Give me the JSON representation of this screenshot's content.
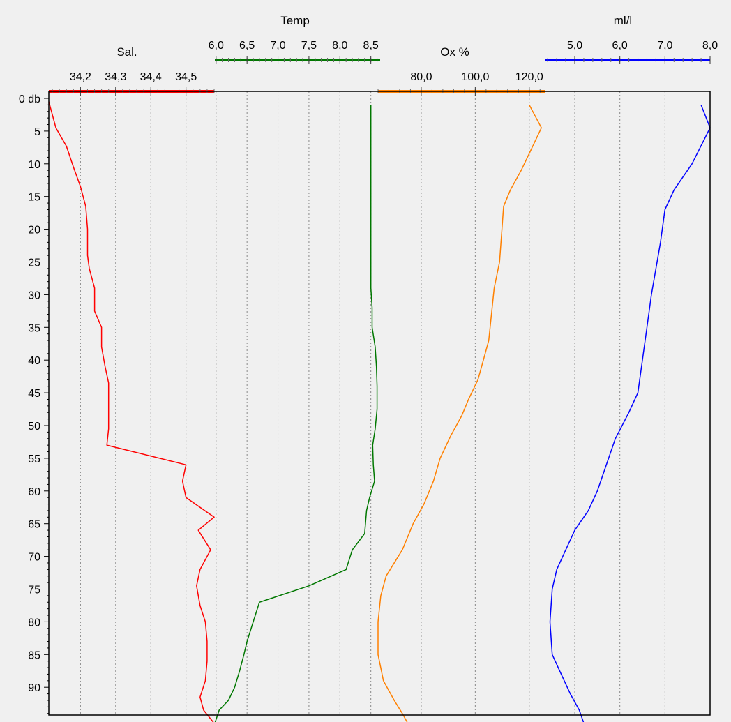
{
  "chart_data": {
    "type": "line",
    "orientation": "vertical-profile",
    "depth_axis": {
      "unit_label": "db",
      "range": [
        0,
        95
      ],
      "tick_labels": [
        "0 db",
        "5",
        "10",
        "15",
        "20",
        "25",
        "30",
        "35",
        "40",
        "45",
        "50",
        "55",
        "60",
        "65",
        "70",
        "75",
        "80",
        "85",
        "90"
      ],
      "tick_values": [
        0,
        5,
        10,
        15,
        20,
        25,
        30,
        35,
        40,
        45,
        50,
        55,
        60,
        65,
        70,
        75,
        80,
        85,
        90
      ]
    },
    "grid": true,
    "series": [
      {
        "name": "Sal.",
        "color": "#ff0000",
        "range": [
          34.11,
          34.58
        ],
        "ticks": [
          "34,2",
          "34,3",
          "34,4",
          "34,5"
        ],
        "tick_values": [
          34.2,
          34.3,
          34.4,
          34.5
        ],
        "points": [
          [
            34.11,
            0.5
          ],
          [
            34.13,
            4.5
          ],
          [
            34.16,
            7.3
          ],
          [
            34.18,
            10.5
          ],
          [
            34.2,
            13.5
          ],
          [
            34.215,
            16.5
          ],
          [
            34.22,
            20
          ],
          [
            34.22,
            24
          ],
          [
            34.225,
            26
          ],
          [
            34.24,
            29
          ],
          [
            34.24,
            32.5
          ],
          [
            34.26,
            35
          ],
          [
            34.26,
            38
          ],
          [
            34.27,
            41
          ],
          [
            34.28,
            43.5
          ],
          [
            34.28,
            47
          ],
          [
            34.28,
            50.5
          ],
          [
            34.275,
            53
          ],
          [
            34.5,
            56
          ],
          [
            34.49,
            58.5
          ],
          [
            34.5,
            61
          ],
          [
            34.58,
            64
          ],
          [
            34.535,
            66
          ],
          [
            34.57,
            69
          ],
          [
            34.54,
            72
          ],
          [
            34.53,
            74.5
          ],
          [
            34.54,
            77.5
          ],
          [
            34.555,
            80
          ],
          [
            34.56,
            83
          ],
          [
            34.56,
            86
          ],
          [
            34.555,
            89
          ],
          [
            34.54,
            91.5
          ],
          [
            34.55,
            93.5
          ],
          [
            34.58,
            95.5
          ]
        ]
      },
      {
        "name": "Temp",
        "color": "#007700",
        "range": [
          5.98,
          8.65
        ],
        "ticks": [
          "6,0",
          "6,5",
          "7,0",
          "7,5",
          "8,0",
          "8,5"
        ],
        "tick_values": [
          6.0,
          6.5,
          7.0,
          7.5,
          8.0,
          8.5
        ],
        "points": [
          [
            8.5,
            1
          ],
          [
            8.5,
            10
          ],
          [
            8.5,
            20
          ],
          [
            8.5,
            29
          ],
          [
            8.52,
            32
          ],
          [
            8.52,
            35
          ],
          [
            8.57,
            38
          ],
          [
            8.59,
            41
          ],
          [
            8.6,
            44
          ],
          [
            8.6,
            47.5
          ],
          [
            8.57,
            50.5
          ],
          [
            8.53,
            53
          ],
          [
            8.54,
            56
          ],
          [
            8.56,
            58.5
          ],
          [
            8.48,
            61
          ],
          [
            8.43,
            63
          ],
          [
            8.4,
            66.5
          ],
          [
            8.2,
            69
          ],
          [
            8.1,
            72
          ],
          [
            7.5,
            74.5
          ],
          [
            6.7,
            77
          ],
          [
            6.6,
            80
          ],
          [
            6.5,
            83
          ],
          [
            6.45,
            85
          ],
          [
            6.38,
            87.5
          ],
          [
            6.3,
            90
          ],
          [
            6.2,
            92
          ],
          [
            6.05,
            93.5
          ],
          [
            5.98,
            95.5
          ]
        ]
      },
      {
        "name": "Ox %",
        "color": "#ff8000",
        "range": [
          64.0,
          126.0
        ],
        "ticks": [
          "80,0",
          "100,0",
          "120,0"
        ],
        "tick_values": [
          80.0,
          100.0,
          120.0
        ],
        "points": [
          [
            120,
            1
          ],
          [
            124.5,
            4.5
          ],
          [
            120.5,
            8
          ],
          [
            117,
            11
          ],
          [
            113,
            14
          ],
          [
            110.5,
            16.5
          ],
          [
            109,
            25
          ],
          [
            107,
            29
          ],
          [
            106,
            33
          ],
          [
            105,
            37
          ],
          [
            103,
            40
          ],
          [
            101,
            43
          ],
          [
            97.5,
            46
          ],
          [
            95,
            48.5
          ],
          [
            91,
            51.5
          ],
          [
            87,
            55
          ],
          [
            84.5,
            58.5
          ],
          [
            81,
            62
          ],
          [
            77,
            65
          ],
          [
            73,
            69
          ],
          [
            67,
            73
          ],
          [
            65,
            76
          ],
          [
            64,
            80
          ],
          [
            64,
            85
          ],
          [
            66,
            89
          ],
          [
            70,
            92
          ],
          [
            73,
            94
          ],
          [
            75,
            95.5
          ]
        ]
      },
      {
        "name": "ml/l",
        "color": "#0000ff",
        "range": [
          4.35,
          8.0
        ],
        "ticks": [
          "5,0",
          "6,0",
          "7,0",
          "8,0"
        ],
        "tick_values": [
          5.0,
          6.0,
          7.0,
          8.0
        ],
        "points": [
          [
            7.8,
            1
          ],
          [
            8.0,
            4.5
          ],
          [
            7.6,
            10
          ],
          [
            7.2,
            14
          ],
          [
            7.0,
            17
          ],
          [
            6.9,
            22
          ],
          [
            6.8,
            26
          ],
          [
            6.7,
            30
          ],
          [
            6.6,
            35
          ],
          [
            6.5,
            40
          ],
          [
            6.4,
            45
          ],
          [
            6.2,
            48
          ],
          [
            5.9,
            52
          ],
          [
            5.7,
            56
          ],
          [
            5.5,
            60
          ],
          [
            5.3,
            63
          ],
          [
            5.0,
            66
          ],
          [
            4.8,
            69
          ],
          [
            4.6,
            72
          ],
          [
            4.5,
            75
          ],
          [
            4.45,
            80
          ],
          [
            4.5,
            85
          ],
          [
            4.7,
            88
          ],
          [
            4.9,
            91
          ],
          [
            5.1,
            93.5
          ],
          [
            5.2,
            95.5
          ]
        ]
      }
    ]
  }
}
